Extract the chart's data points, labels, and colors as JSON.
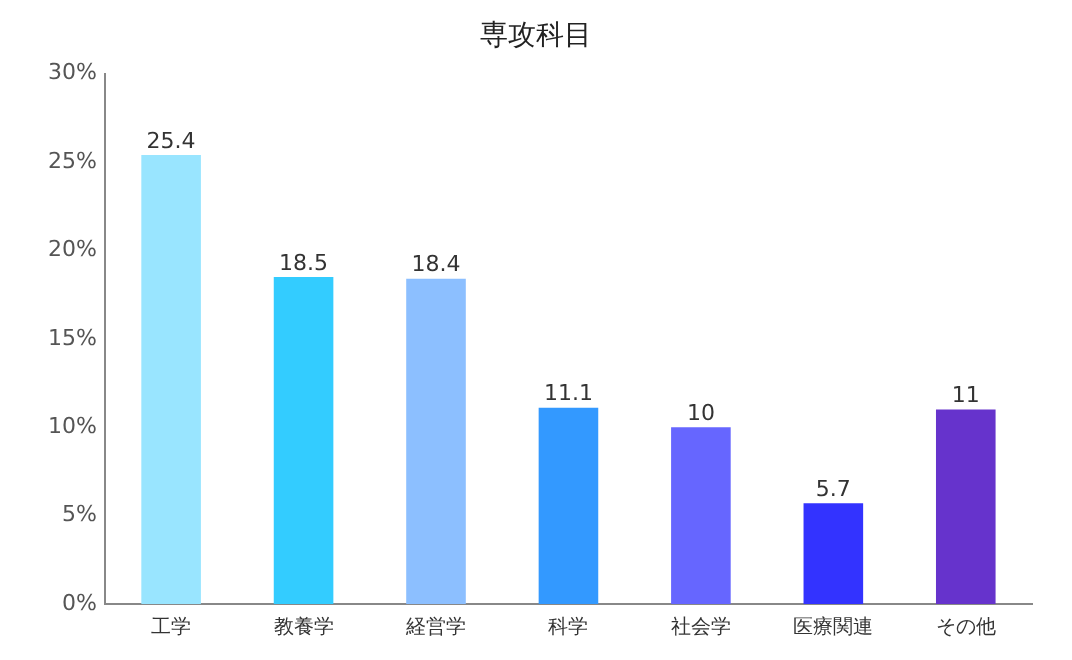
{
  "chart_data": {
    "type": "bar",
    "title": "専攻科目",
    "categories": [
      "工学",
      "教養学",
      "経営学",
      "科学",
      "社会学",
      "医療関連",
      "その他"
    ],
    "values": [
      25.4,
      18.5,
      18.4,
      11.1,
      10,
      5.7,
      11
    ],
    "colors": [
      "#99e5ff",
      "#33ccff",
      "#8cbfff",
      "#3399ff",
      "#6666ff",
      "#3333ff",
      "#6633cc"
    ],
    "ylim": [
      0,
      30
    ],
    "yticks": [
      {
        "value": 0,
        "label": "0%"
      },
      {
        "value": 5,
        "label": "5%"
      },
      {
        "value": 10,
        "label": "10%"
      },
      {
        "value": 15,
        "label": "15%"
      },
      {
        "value": 20,
        "label": "20%"
      },
      {
        "value": 25,
        "label": "25%"
      },
      {
        "value": 30,
        "label": "30%"
      }
    ],
    "data_labels": true,
    "grid": false,
    "legend": false
  }
}
